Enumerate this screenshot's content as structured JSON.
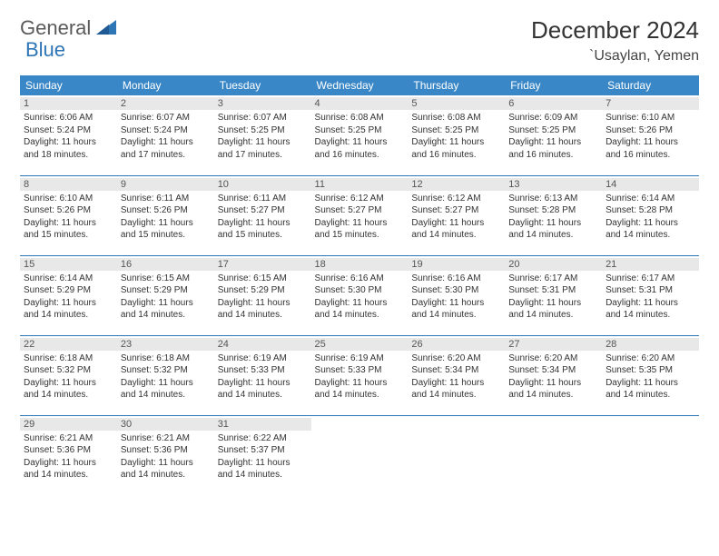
{
  "logo": {
    "general": "General",
    "blue": "Blue"
  },
  "title": "December 2024",
  "location": "`Usaylan, Yemen",
  "colors": {
    "header_bg": "#3a87c7",
    "header_fg": "#ffffff",
    "daynum_bg": "#e8e8e8",
    "border": "#2e75b6",
    "text": "#333333",
    "logo_grey": "#5a5a5a",
    "logo_blue": "#2e75b6"
  },
  "weekdays": [
    "Sunday",
    "Monday",
    "Tuesday",
    "Wednesday",
    "Thursday",
    "Friday",
    "Saturday"
  ],
  "cells": [
    {
      "n": "1",
      "sr": "6:06 AM",
      "ss": "5:24 PM",
      "dl": "11 hours and 18 minutes."
    },
    {
      "n": "2",
      "sr": "6:07 AM",
      "ss": "5:24 PM",
      "dl": "11 hours and 17 minutes."
    },
    {
      "n": "3",
      "sr": "6:07 AM",
      "ss": "5:25 PM",
      "dl": "11 hours and 17 minutes."
    },
    {
      "n": "4",
      "sr": "6:08 AM",
      "ss": "5:25 PM",
      "dl": "11 hours and 16 minutes."
    },
    {
      "n": "5",
      "sr": "6:08 AM",
      "ss": "5:25 PM",
      "dl": "11 hours and 16 minutes."
    },
    {
      "n": "6",
      "sr": "6:09 AM",
      "ss": "5:25 PM",
      "dl": "11 hours and 16 minutes."
    },
    {
      "n": "7",
      "sr": "6:10 AM",
      "ss": "5:26 PM",
      "dl": "11 hours and 16 minutes."
    },
    {
      "n": "8",
      "sr": "6:10 AM",
      "ss": "5:26 PM",
      "dl": "11 hours and 15 minutes."
    },
    {
      "n": "9",
      "sr": "6:11 AM",
      "ss": "5:26 PM",
      "dl": "11 hours and 15 minutes."
    },
    {
      "n": "10",
      "sr": "6:11 AM",
      "ss": "5:27 PM",
      "dl": "11 hours and 15 minutes."
    },
    {
      "n": "11",
      "sr": "6:12 AM",
      "ss": "5:27 PM",
      "dl": "11 hours and 15 minutes."
    },
    {
      "n": "12",
      "sr": "6:12 AM",
      "ss": "5:27 PM",
      "dl": "11 hours and 14 minutes."
    },
    {
      "n": "13",
      "sr": "6:13 AM",
      "ss": "5:28 PM",
      "dl": "11 hours and 14 minutes."
    },
    {
      "n": "14",
      "sr": "6:14 AM",
      "ss": "5:28 PM",
      "dl": "11 hours and 14 minutes."
    },
    {
      "n": "15",
      "sr": "6:14 AM",
      "ss": "5:29 PM",
      "dl": "11 hours and 14 minutes."
    },
    {
      "n": "16",
      "sr": "6:15 AM",
      "ss": "5:29 PM",
      "dl": "11 hours and 14 minutes."
    },
    {
      "n": "17",
      "sr": "6:15 AM",
      "ss": "5:29 PM",
      "dl": "11 hours and 14 minutes."
    },
    {
      "n": "18",
      "sr": "6:16 AM",
      "ss": "5:30 PM",
      "dl": "11 hours and 14 minutes."
    },
    {
      "n": "19",
      "sr": "6:16 AM",
      "ss": "5:30 PM",
      "dl": "11 hours and 14 minutes."
    },
    {
      "n": "20",
      "sr": "6:17 AM",
      "ss": "5:31 PM",
      "dl": "11 hours and 14 minutes."
    },
    {
      "n": "21",
      "sr": "6:17 AM",
      "ss": "5:31 PM",
      "dl": "11 hours and 14 minutes."
    },
    {
      "n": "22",
      "sr": "6:18 AM",
      "ss": "5:32 PM",
      "dl": "11 hours and 14 minutes."
    },
    {
      "n": "23",
      "sr": "6:18 AM",
      "ss": "5:32 PM",
      "dl": "11 hours and 14 minutes."
    },
    {
      "n": "24",
      "sr": "6:19 AM",
      "ss": "5:33 PM",
      "dl": "11 hours and 14 minutes."
    },
    {
      "n": "25",
      "sr": "6:19 AM",
      "ss": "5:33 PM",
      "dl": "11 hours and 14 minutes."
    },
    {
      "n": "26",
      "sr": "6:20 AM",
      "ss": "5:34 PM",
      "dl": "11 hours and 14 minutes."
    },
    {
      "n": "27",
      "sr": "6:20 AM",
      "ss": "5:34 PM",
      "dl": "11 hours and 14 minutes."
    },
    {
      "n": "28",
      "sr": "6:20 AM",
      "ss": "5:35 PM",
      "dl": "11 hours and 14 minutes."
    },
    {
      "n": "29",
      "sr": "6:21 AM",
      "ss": "5:36 PM",
      "dl": "11 hours and 14 minutes."
    },
    {
      "n": "30",
      "sr": "6:21 AM",
      "ss": "5:36 PM",
      "dl": "11 hours and 14 minutes."
    },
    {
      "n": "31",
      "sr": "6:22 AM",
      "ss": "5:37 PM",
      "dl": "11 hours and 14 minutes."
    }
  ],
  "labels": {
    "sunrise": "Sunrise:",
    "sunset": "Sunset:",
    "daylight": "Daylight:"
  }
}
